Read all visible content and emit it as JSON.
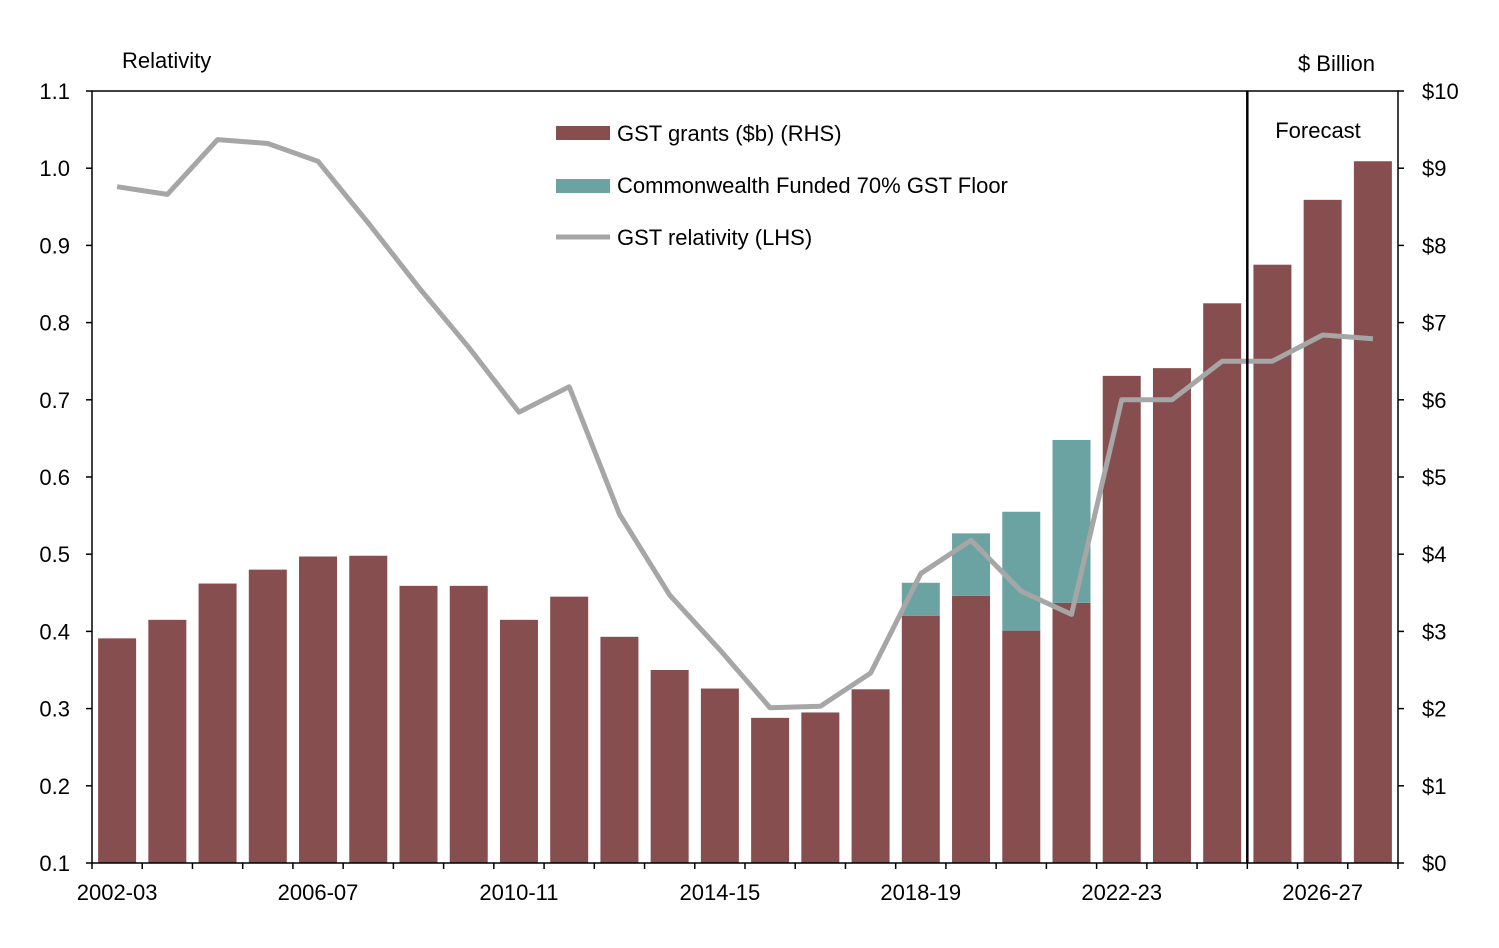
{
  "colors": {
    "gst_grants": "#864E4E",
    "floor": "#6BA3A3",
    "relativity": "#A6A6A6",
    "axis": "#000000"
  },
  "chart_data": {
    "type": "bar",
    "left_axis_title": "Relativity",
    "right_axis_title": "$ Billion",
    "forecast_label": "Forecast",
    "forecast_starts_at": "2025-26",
    "left_ylim": [
      0.1,
      1.1
    ],
    "right_ylim": [
      0,
      10
    ],
    "left_ticks": [
      "0.1",
      "0.2",
      "0.3",
      "0.4",
      "0.5",
      "0.6",
      "0.7",
      "0.8",
      "0.9",
      "1.0",
      "1.1"
    ],
    "right_ticks": [
      "$0",
      "$1",
      "$2",
      "$3",
      "$4",
      "$5",
      "$6",
      "$7",
      "$8",
      "$9",
      "$10"
    ],
    "x_tick_labels": [
      "2002-03",
      "2006-07",
      "2010-11",
      "2014-15",
      "2018-19",
      "2022-23",
      "2026-27"
    ],
    "grid": false,
    "legend_position": "top-center",
    "categories": [
      "2002-03",
      "2003-04",
      "2004-05",
      "2005-06",
      "2006-07",
      "2007-08",
      "2008-09",
      "2009-10",
      "2010-11",
      "2011-12",
      "2012-13",
      "2013-14",
      "2014-15",
      "2015-16",
      "2016-17",
      "2017-18",
      "2018-19",
      "2019-20",
      "2020-21",
      "2021-22",
      "2022-23",
      "2023-24",
      "2024-25",
      "2025-26",
      "2026-27",
      "2027-28"
    ],
    "series": [
      {
        "name": "GST grants ($b) (RHS)",
        "kind": "bar",
        "axis": "right",
        "values": [
          2.91,
          3.15,
          3.62,
          3.8,
          3.97,
          3.98,
          3.59,
          3.59,
          3.15,
          3.45,
          2.93,
          2.5,
          2.26,
          1.88,
          1.95,
          2.25,
          3.2,
          3.46,
          3.01,
          3.37,
          6.31,
          6.41,
          7.25,
          7.75,
          8.59,
          9.09
        ]
      },
      {
        "name": "Commonwealth Funded 70% GST Floor",
        "kind": "bar-stacked",
        "axis": "right",
        "values": [
          0,
          0,
          0,
          0,
          0,
          0,
          0,
          0,
          0,
          0,
          0,
          0,
          0,
          0,
          0,
          0,
          0.43,
          0.81,
          1.54,
          2.11,
          0,
          0,
          0,
          0,
          0,
          0
        ]
      },
      {
        "name": "GST relativity (LHS)",
        "kind": "line",
        "axis": "left",
        "values": [
          0.976,
          0.966,
          1.037,
          1.032,
          1.009,
          0.929,
          0.846,
          0.768,
          0.684,
          0.717,
          0.552,
          0.447,
          0.376,
          0.301,
          0.303,
          0.346,
          0.475,
          0.518,
          0.452,
          0.422,
          0.7,
          0.7,
          0.75,
          0.75,
          0.784,
          0.779
        ]
      }
    ]
  }
}
